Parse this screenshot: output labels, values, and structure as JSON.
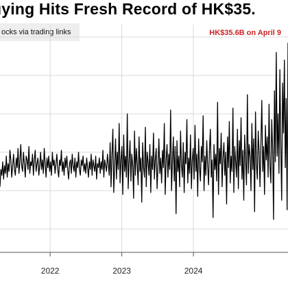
{
  "header": {
    "title": "uying Hits Fresh Record of HK$35.",
    "subtitle": "ocks via trading links"
  },
  "annotation": {
    "text": "HK$35.6B on April 9",
    "color": "#cc2222"
  },
  "chart_data": {
    "type": "line",
    "title": "uying Hits Fresh Record of HK$35.",
    "subtitle": "ocks via trading links",
    "xlabel": "",
    "ylabel": "",
    "grid": true,
    "line_color": "#000000",
    "xlim": [
      2021.3,
      2025.32
    ],
    "ylim": [
      -0.1,
      1.05
    ],
    "x_ticks": [
      2022,
      2023,
      2024
    ],
    "x_tick_labels": [
      "2022",
      "2023",
      "2024"
    ],
    "y_gridlines": [
      0.0,
      0.2,
      0.4,
      0.6,
      0.8,
      1.0
    ],
    "annotations": [
      {
        "text": "HK$35.6B on April 9",
        "x": 2025.27,
        "y": 0.97
      }
    ],
    "series": [
      {
        "x_start": 2021.3,
        "x_end": 2025.32,
        "values": [
          0.22,
          0.31,
          0.28,
          0.35,
          0.26,
          0.33,
          0.29,
          0.38,
          0.27,
          0.34,
          0.3,
          0.41,
          0.36,
          0.27,
          0.33,
          0.39,
          0.31,
          0.28,
          0.37,
          0.32,
          0.42,
          0.29,
          0.35,
          0.44,
          0.33,
          0.3,
          0.4,
          0.34,
          0.27,
          0.38,
          0.36,
          0.31,
          0.43,
          0.29,
          0.35,
          0.33,
          0.39,
          0.28,
          0.36,
          0.41,
          0.3,
          0.34,
          0.37,
          0.28,
          0.33,
          0.4,
          0.31,
          0.36,
          0.29,
          0.42,
          0.34,
          0.27,
          0.37,
          0.32,
          0.38,
          0.3,
          0.35,
          0.28,
          0.4,
          0.33,
          0.36,
          0.29,
          0.34,
          0.39,
          0.31,
          0.27,
          0.36,
          0.33,
          0.41,
          0.3,
          0.35,
          0.28,
          0.37,
          0.32,
          0.38,
          0.31,
          0.26,
          0.34,
          0.36,
          0.29,
          0.39,
          0.33,
          0.3,
          0.37,
          0.27,
          0.35,
          0.32,
          0.4,
          0.31,
          0.28,
          0.36,
          0.33,
          0.38,
          0.3,
          0.34,
          0.29,
          0.37,
          0.32,
          0.27,
          0.35,
          0.31,
          0.39,
          0.28,
          0.36,
          0.33,
          0.3,
          0.38,
          0.26,
          0.34,
          0.32,
          0.37,
          0.29,
          0.35,
          0.31,
          0.41,
          0.27,
          0.36,
          0.33,
          0.3,
          0.39,
          0.34,
          0.28,
          0.45,
          0.22,
          0.38,
          0.52,
          0.19,
          0.33,
          0.47,
          0.26,
          0.4,
          0.31,
          0.55,
          0.24,
          0.36,
          0.43,
          0.18,
          0.49,
          0.3,
          0.38,
          0.27,
          0.6,
          0.21,
          0.35,
          0.46,
          0.25,
          0.39,
          0.33,
          0.16,
          0.51,
          0.28,
          0.42,
          0.34,
          0.23,
          0.48,
          0.3,
          0.37,
          0.14,
          0.45,
          0.32,
          0.27,
          0.53,
          0.22,
          0.4,
          0.35,
          0.28,
          0.44,
          0.19,
          0.38,
          0.31,
          0.5,
          0.26,
          0.36,
          0.42,
          0.21,
          0.33,
          0.47,
          0.29,
          0.37,
          0.24,
          0.41,
          0.32,
          0.55,
          0.18,
          0.36,
          0.44,
          0.27,
          0.39,
          0.31,
          0.62,
          0.2,
          0.35,
          0.48,
          0.25,
          0.43,
          0.08,
          0.46,
          0.3,
          0.38,
          0.22,
          0.51,
          0.33,
          0.27,
          0.45,
          0.19,
          0.4,
          0.34,
          0.57,
          0.24,
          0.37,
          0.29,
          0.49,
          0.21,
          0.36,
          0.42,
          0.26,
          0.54,
          0.3,
          0.39,
          0.17,
          0.47,
          0.32,
          0.25,
          0.43,
          0.35,
          0.59,
          0.2,
          0.38,
          0.28,
          0.46,
          0.33,
          0.23,
          0.41,
          0.52,
          0.27,
          0.36,
          0.06,
          0.44,
          0.31,
          0.39,
          0.25,
          0.66,
          0.18,
          0.42,
          0.34,
          0.5,
          0.22,
          0.37,
          0.45,
          0.28,
          0.4,
          0.13,
          0.48,
          0.32,
          0.56,
          0.24,
          0.38,
          0.3,
          0.63,
          0.19,
          0.43,
          0.35,
          0.27,
          0.52,
          0.21,
          0.46,
          0.33,
          0.58,
          0.26,
          0.41,
          0.15,
          0.49,
          0.36,
          0.23,
          0.7,
          0.29,
          0.44,
          0.38,
          0.2,
          0.55,
          0.31,
          0.47,
          0.09,
          0.61,
          0.34,
          0.26,
          0.51,
          0.4,
          0.22,
          0.45,
          0.67,
          0.3,
          0.43,
          0.18,
          0.54,
          0.36,
          0.48,
          0.27,
          0.65,
          0.33,
          0.24,
          0.57,
          0.41,
          0.05,
          0.72,
          0.35,
          0.92,
          0.38,
          0.6,
          0.29,
          0.83,
          0.44,
          0.15,
          0.76,
          0.5,
          0.88,
          0.32,
          0.68,
          0.1,
          0.97
        ]
      }
    ]
  }
}
